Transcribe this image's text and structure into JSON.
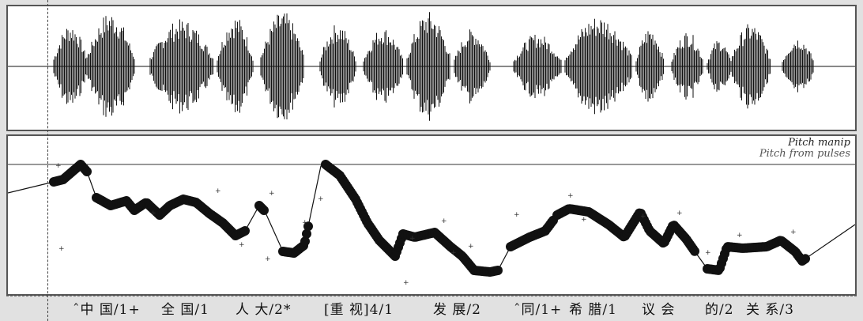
{
  "legend": {
    "line1": "Pitch manip",
    "line2": "Pitch from pulses"
  },
  "tiers": [
    {
      "label": "ˆ中 国/1+"
    },
    {
      "label": "全 国/1"
    },
    {
      "label": "人 大/2*"
    },
    {
      "label": "[重 视]4/1"
    },
    {
      "label": "发 展/2"
    },
    {
      "label": "ˆ同/1+"
    },
    {
      "label": "希 腊/1"
    },
    {
      "label": "议 会"
    },
    {
      "label": "的/2"
    },
    {
      "label": "关 系/3"
    }
  ],
  "colors": {
    "waveform": "#111111",
    "pitch": "#111111",
    "background": "#ffffff"
  }
}
